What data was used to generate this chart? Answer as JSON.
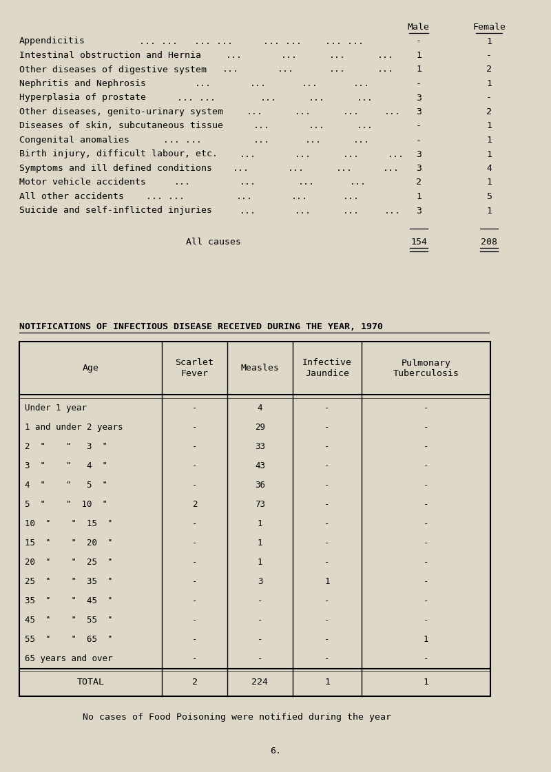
{
  "bg_color": "#ddd8c8",
  "section1_rows": [
    [
      "Appendicitis",
      "... ... ... ...",
      "... ...",
      "... ...",
      "-",
      "1"
    ],
    [
      "Intestinal obstruction and Hernia",
      "...",
      "...",
      "...",
      "1",
      "-"
    ],
    [
      "Other diseases of digestive system",
      "...",
      "...",
      "...",
      "1",
      "2"
    ],
    [
      "Nephritis and Nephrosis",
      "...",
      "...",
      "...",
      "-",
      "1"
    ],
    [
      "Hyperplasia of prostate",
      "... ...",
      "...",
      "...",
      "3",
      "-"
    ],
    [
      "Other diseases, genito-urinary system",
      "...",
      "...",
      "...",
      "3",
      "2"
    ],
    [
      "Diseases of skin, subcutaneous tissue",
      "...",
      "...",
      "...",
      "-",
      "1"
    ],
    [
      "Congenital anomalies",
      "... ...",
      "...",
      "...",
      "-",
      "1"
    ],
    [
      "Birth injury, difficult labour, etc.",
      "...",
      "...",
      "...",
      "3",
      "1"
    ],
    [
      "Symptoms and ill defined conditions",
      "...",
      "...",
      "...",
      "3",
      "4"
    ],
    [
      "Motor vehicle accidents",
      "...",
      "...",
      "...",
      "2",
      "1"
    ],
    [
      "All other accidents",
      "... ...",
      "...",
      "...",
      "1",
      "5"
    ],
    [
      "Suicide and self-inflicted injuries",
      "...",
      "...",
      "...",
      "3",
      "1"
    ]
  ],
  "section1_total_label": "All causes",
  "section1_total": [
    "154",
    "208"
  ],
  "section2_title": "NOTIFICATIONS OF INFECTIOUS DISEASE RECEIVED DURING THE YEAR, 1970",
  "section2_col_headers": [
    "Age",
    "Scarlet\nFever",
    "Measles",
    "Infective\nJaundice",
    "Pulmonary\nTuberculosis"
  ],
  "section2_rows": [
    [
      "Under 1 year",
      "-",
      "4",
      "-",
      "-"
    ],
    [
      "1 and under 2 years",
      "-",
      "29",
      "-",
      "-"
    ],
    [
      "2  \"    \"   3  \"",
      "-",
      "33",
      "-",
      "-"
    ],
    [
      "3  \"    \"   4  \"",
      "-",
      "43",
      "-",
      "-"
    ],
    [
      "4  \"    \"   5  \"",
      "-",
      "36",
      "-",
      "-"
    ],
    [
      "5  \"    \"  10  \"",
      "2",
      "73",
      "-",
      "-"
    ],
    [
      "10  \"    \"  15  \"",
      "-",
      "1",
      "-",
      "-"
    ],
    [
      "15  \"    \"  20  \"",
      "-",
      "1",
      "-",
      "-"
    ],
    [
      "20  \"    \"  25  \"",
      "-",
      "1",
      "-",
      "-"
    ],
    [
      "25  \"    \"  35  \"",
      "-",
      "3",
      "1",
      "-"
    ],
    [
      "35  \"    \"  45  \"",
      "-",
      "-",
      "-",
      "-"
    ],
    [
      "45  \"    \"  55  \"",
      "-",
      "-",
      "-",
      "-"
    ],
    [
      "55  \"    \"  65  \"",
      "-",
      "-",
      "-",
      "1"
    ],
    [
      "65 years and over",
      "-",
      "-",
      "-",
      "-"
    ]
  ],
  "section2_total": [
    "2",
    "224",
    "1",
    "1"
  ],
  "footer_note": "No cases of Food Poisoning were notified during the year",
  "page_number": "6."
}
